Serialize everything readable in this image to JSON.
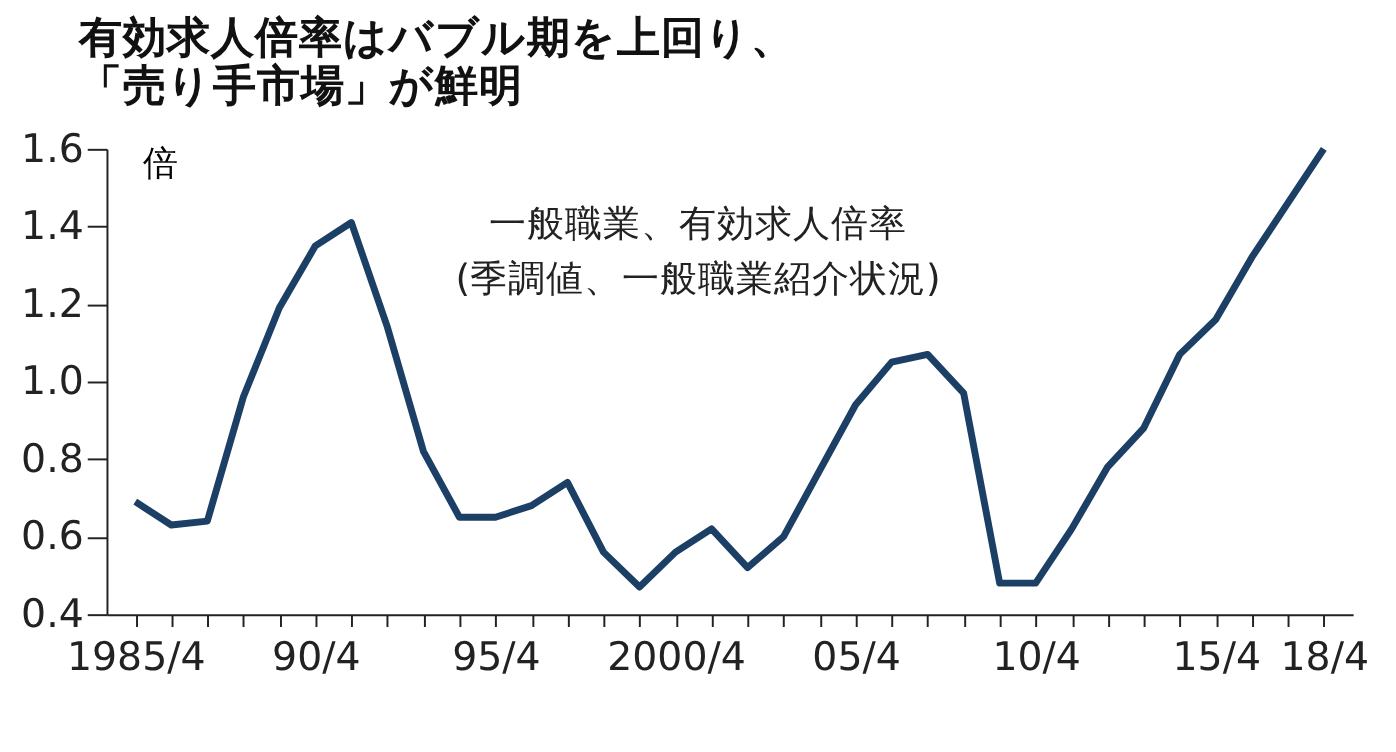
{
  "chart_data": {
    "type": "line",
    "title": [
      "有効求人倍率はバブル期を上回り、",
      "「売り手市場」が鮮明"
    ],
    "ylabel": "倍",
    "annotations": [
      "一般職業、有効求人倍率",
      "(季調値、一般職業紹介状況)"
    ],
    "categories": [
      "1985/4",
      null,
      null,
      null,
      null,
      "90/4",
      null,
      null,
      null,
      null,
      "95/4",
      null,
      null,
      null,
      null,
      "2000/4",
      null,
      null,
      null,
      null,
      "05/4",
      null,
      null,
      null,
      null,
      "10/4",
      null,
      null,
      null,
      null,
      "15/4",
      null,
      null,
      "18/4"
    ],
    "series": [
      {
        "color": "#1c3f66",
        "values": [
          0.69,
          0.63,
          0.64,
          0.96,
          1.19,
          1.35,
          1.41,
          1.14,
          0.82,
          0.65,
          0.65,
          0.68,
          0.74,
          0.56,
          0.47,
          0.56,
          0.62,
          0.52,
          0.6,
          0.77,
          0.94,
          1.05,
          1.07,
          0.97,
          0.48,
          0.48,
          0.62,
          0.78,
          0.88,
          1.07,
          1.16,
          1.32,
          1.46,
          1.6
        ]
      }
    ],
    "ylim": [
      0.4,
      1.6
    ],
    "yticks": [
      0.4,
      0.6,
      0.8,
      {
        "value": 1,
        "label": "1.0"
      },
      1.2,
      1.4,
      1.6
    ],
    "grid": false,
    "legend": false,
    "marker": "none",
    "line_style": "solid"
  }
}
